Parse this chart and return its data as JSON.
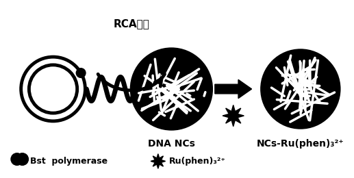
{
  "bg_color": "#ffffff",
  "text_color": "#000000",
  "title_rca": "RCA扩增",
  "label_dna_ncs": "DNA NCs",
  "label_ncs_ru": "NCs-Ru(phen)₃²⁺",
  "figsize": [
    5.17,
    2.6
  ],
  "dpi": 100
}
